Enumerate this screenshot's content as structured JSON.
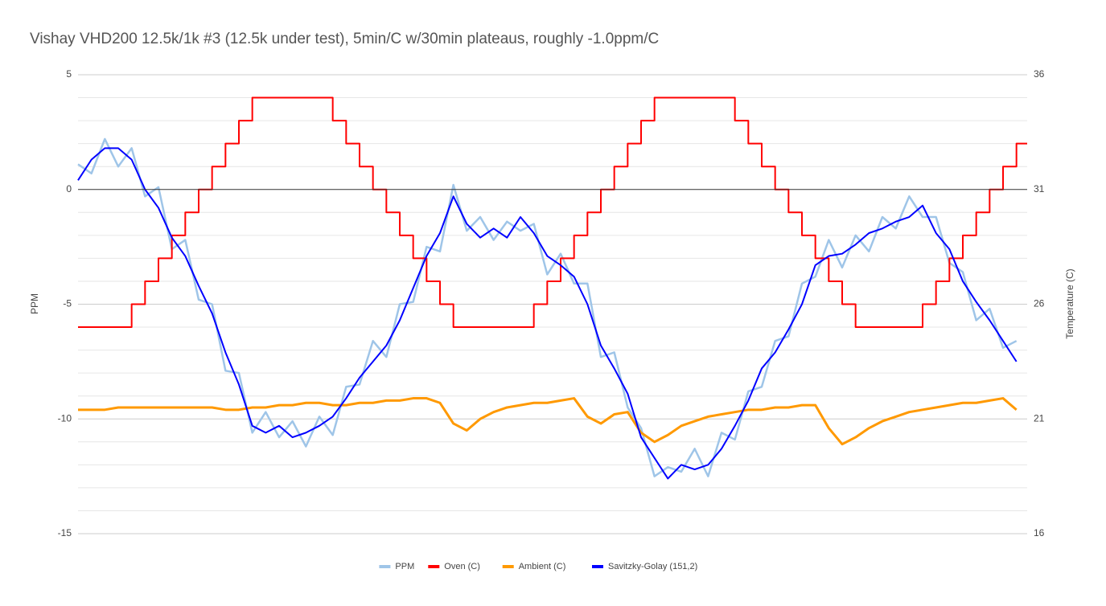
{
  "chart_data": {
    "type": "line",
    "title": "Vishay VHD200 12.5k/1k #3 (12.5k under test), 5min/C w/30min plateaus, roughly -1.0ppm/C",
    "ylabel": "PPM",
    "y2label": "Temperature (C)",
    "ylim": [
      -15,
      5
    ],
    "yticks": [
      -15,
      -10,
      -5,
      0,
      5
    ],
    "yminorticks": [
      -14,
      -13,
      -12,
      -11,
      -9,
      -8,
      -7,
      -6,
      -4,
      -3,
      -2,
      -1,
      1,
      2,
      3,
      4
    ],
    "y2lim": [
      16,
      36
    ],
    "y2ticks": [
      16,
      21,
      26,
      31,
      36
    ],
    "xlim": [
      0,
      354
    ],
    "grid": true,
    "legend": "bottom",
    "x": [
      0,
      5,
      10,
      15,
      20,
      25,
      30,
      35,
      40,
      45,
      50,
      55,
      60,
      65,
      70,
      75,
      80,
      85,
      90,
      95,
      100,
      105,
      110,
      115,
      120,
      125,
      130,
      135,
      140,
      145,
      150,
      155,
      160,
      165,
      170,
      175,
      180,
      185,
      190,
      195,
      200,
      205,
      210,
      215,
      220,
      225,
      230,
      235,
      240,
      245,
      250,
      255,
      260,
      265,
      270,
      275,
      280,
      285,
      290,
      295,
      300,
      305,
      310,
      315,
      320,
      325,
      330,
      335,
      340,
      345,
      350
    ],
    "series": [
      {
        "name": "PPM",
        "color": "#9fc5e8",
        "values": [
          1.1,
          0.7,
          2.2,
          1.0,
          1.8,
          -0.3,
          0.1,
          -2.6,
          -2.2,
          -4.8,
          -5.0,
          -7.9,
          -8.0,
          -10.6,
          -9.7,
          -10.8,
          -10.1,
          -11.2,
          -9.9,
          -10.7,
          -8.6,
          -8.5,
          -6.6,
          -7.3,
          -5.0,
          -4.9,
          -2.5,
          -2.7,
          0.2,
          -1.8,
          -1.2,
          -2.2,
          -1.4,
          -1.8,
          -1.5,
          -3.7,
          -2.8,
          -4.1,
          -4.1,
          -7.3,
          -7.1,
          -9.5,
          -10.4,
          -12.5,
          -12.1,
          -12.3,
          -11.3,
          -12.5,
          -10.6,
          -10.9,
          -8.8,
          -8.6,
          -6.6,
          -6.4,
          -4.1,
          -3.8,
          -2.2,
          -3.4,
          -2.0,
          -2.7,
          -1.2,
          -1.7,
          -0.3,
          -1.2,
          -1.2,
          -3.2,
          -3.6,
          -5.7,
          -5.2,
          -6.9,
          -6.6
        ]
      },
      {
        "name": "Oven (C)",
        "color": "#ff0000",
        "axis": "y2",
        "step": true,
        "values": [
          25,
          25,
          25,
          25,
          26,
          27,
          28,
          29,
          30,
          31,
          32,
          33,
          34,
          35,
          35,
          35,
          35,
          35,
          35,
          34,
          33,
          32,
          31,
          30,
          29,
          28,
          27,
          26,
          25,
          25,
          25,
          25,
          25,
          25,
          26,
          27,
          28,
          29,
          30,
          31,
          32,
          33,
          34,
          35,
          35,
          35,
          35,
          35,
          35,
          34,
          33,
          32,
          31,
          30,
          29,
          28,
          27,
          26,
          25,
          25,
          25,
          25,
          25,
          26,
          27,
          28,
          29,
          30,
          31,
          32,
          33
        ]
      },
      {
        "name": "Ambient (C)",
        "color": "#ff9900",
        "axis": "y2",
        "values": [
          21.4,
          21.4,
          21.4,
          21.5,
          21.5,
          21.5,
          21.5,
          21.5,
          21.5,
          21.5,
          21.5,
          21.4,
          21.4,
          21.5,
          21.5,
          21.6,
          21.6,
          21.7,
          21.7,
          21.6,
          21.6,
          21.7,
          21.7,
          21.8,
          21.8,
          21.9,
          21.9,
          21.7,
          20.8,
          20.5,
          21.0,
          21.3,
          21.5,
          21.6,
          21.7,
          21.7,
          21.8,
          21.9,
          21.1,
          20.8,
          21.2,
          21.3,
          20.4,
          20.0,
          20.3,
          20.7,
          20.9,
          21.1,
          21.2,
          21.3,
          21.4,
          21.4,
          21.5,
          21.5,
          21.6,
          21.6,
          20.6,
          19.9,
          20.2,
          20.6,
          20.9,
          21.1,
          21.3,
          21.4,
          21.5,
          21.6,
          21.7,
          21.7,
          21.8,
          21.9,
          21.4
        ]
      },
      {
        "name": "Savitzky-Golay (151,2)",
        "color": "#0000ff",
        "values": [
          0.4,
          1.3,
          1.8,
          1.8,
          1.3,
          0,
          -0.8,
          -2.1,
          -2.9,
          -4.2,
          -5.4,
          -7.1,
          -8.5,
          -10.3,
          -10.6,
          -10.3,
          -10.8,
          -10.6,
          -10.3,
          -9.9,
          -9.1,
          -8.2,
          -7.5,
          -6.8,
          -5.7,
          -4.3,
          -2.9,
          -1.9,
          -0.3,
          -1.5,
          -2.1,
          -1.7,
          -2.1,
          -1.2,
          -1.9,
          -2.9,
          -3.3,
          -3.8,
          -5.0,
          -6.8,
          -7.8,
          -8.9,
          -10.8,
          -11.7,
          -12.6,
          -12.0,
          -12.2,
          -12.0,
          -11.3,
          -10.3,
          -9.2,
          -7.8,
          -7.1,
          -6.1,
          -5.0,
          -3.3,
          -2.9,
          -2.8,
          -2.4,
          -1.9,
          -1.7,
          -1.4,
          -1.2,
          -0.7,
          -1.9,
          -2.6,
          -4.0,
          -4.9,
          -5.7,
          -6.6,
          -7.5
        ]
      }
    ]
  }
}
